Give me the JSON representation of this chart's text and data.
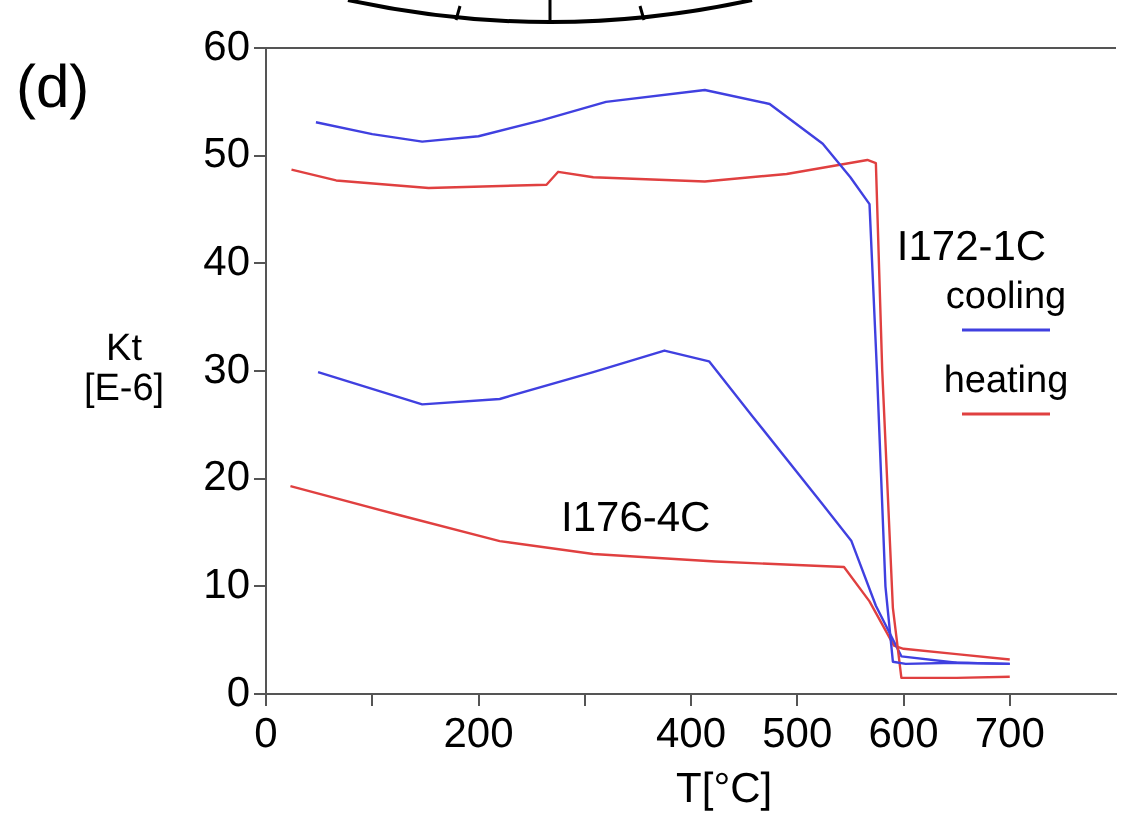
{
  "chart_data": {
    "type": "line",
    "title": "(d)",
    "xlabel": "T[°C]",
    "ylabel": "Kt\n[E-6]",
    "xlim": [
      0,
      800
    ],
    "ylim": [
      0,
      60
    ],
    "xticks": [
      0,
      {
        "value": 100,
        "label": null
      },
      200,
      {
        "value": 300,
        "label": null
      },
      400,
      500,
      600,
      700
    ],
    "yticks": [
      0,
      10,
      20,
      30,
      40,
      50,
      60
    ],
    "grid": false,
    "legend": "right",
    "marker": "none",
    "line_style": "solid",
    "series": [
      {
        "name": "cooling",
        "color": "#4040e0",
        "x": [
          47,
          100,
          147,
          200,
          260,
          320,
          413,
          474,
          524,
          550,
          568,
          575,
          583,
          590,
          602,
          650,
          700
        ],
        "values": [
          53.1,
          52,
          51.3,
          51.8,
          53.3,
          55,
          56.1,
          54.8,
          51.1,
          48,
          45.5,
          30,
          10,
          3,
          2.8,
          2.9,
          2.8
        ]
      },
      {
        "name": "heating",
        "color": "#e04040",
        "x": [
          24,
          66,
          153,
          264,
          275,
          308,
          413,
          490,
          566,
          574,
          580,
          590,
          598,
          650,
          700
        ],
        "values": [
          48.7,
          47.7,
          47,
          47.3,
          48.5,
          48,
          47.6,
          48.3,
          49.6,
          49.3,
          30,
          8,
          1.5,
          1.5,
          1.6
        ]
      },
      {
        "color": "#4040e0",
        "x": [
          49,
          147,
          220,
          308,
          375,
          417,
          457,
          524,
          551,
          574,
          598,
          650,
          700
        ],
        "values": [
          29.9,
          26.9,
          27.4,
          29.9,
          31.9,
          30.9,
          25.9,
          17.6,
          14.2,
          8.2,
          3.5,
          2.9,
          2.8
        ]
      },
      {
        "color": "#e04040",
        "x": [
          23,
          126,
          220,
          308,
          423,
          544,
          568,
          591,
          600,
          650,
          700
        ],
        "values": [
          19.3,
          16.6,
          14.2,
          13,
          12.3,
          11.8,
          8.6,
          4.5,
          4.2,
          3.7,
          3.2
        ]
      }
    ],
    "annotations": [
      "I172-1C",
      "I176-4C"
    ]
  }
}
